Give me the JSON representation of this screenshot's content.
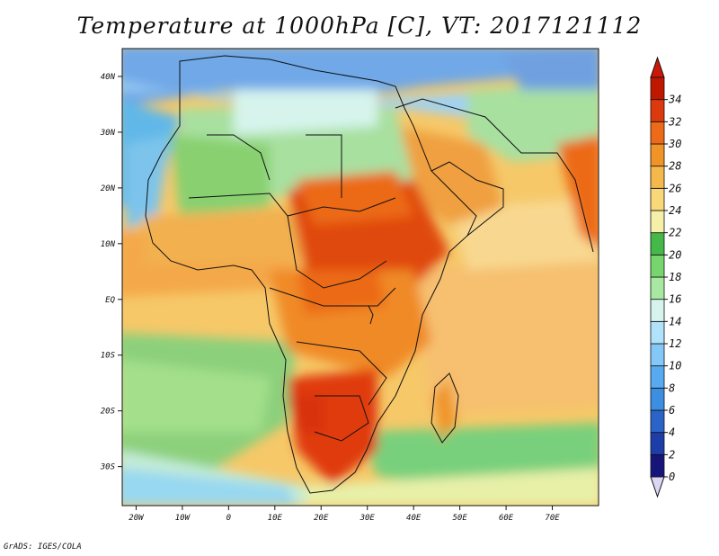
{
  "title": "Temperature at 1000hPa [C], VT: 2017121112",
  "credit": "GrADS: IGES/COLA",
  "map": {
    "lon_range": [
      -23,
      80
    ],
    "lat_range": [
      -37,
      45
    ],
    "y_ticks": [
      {
        "lat": 40,
        "label": "40N"
      },
      {
        "lat": 30,
        "label": "30N"
      },
      {
        "lat": 20,
        "label": "20N"
      },
      {
        "lat": 10,
        "label": "10N"
      },
      {
        "lat": 0,
        "label": "EQ"
      },
      {
        "lat": -10,
        "label": "10S"
      },
      {
        "lat": -20,
        "label": "20S"
      },
      {
        "lat": -30,
        "label": "30S"
      }
    ],
    "x_ticks": [
      {
        "lon": -20,
        "label": "20W"
      },
      {
        "lon": -10,
        "label": "10W"
      },
      {
        "lon": 0,
        "label": "0"
      },
      {
        "lon": 10,
        "label": "10E"
      },
      {
        "lon": 20,
        "label": "20E"
      },
      {
        "lon": 30,
        "label": "30E"
      },
      {
        "lon": 40,
        "label": "40E"
      },
      {
        "lon": 50,
        "label": "50E"
      },
      {
        "lon": 60,
        "label": "60E"
      },
      {
        "lon": 70,
        "label": "70E"
      }
    ]
  },
  "colorbar": {
    "unit": "C",
    "levels": [
      "0",
      "2",
      "4",
      "6",
      "8",
      "10",
      "12",
      "14",
      "16",
      "18",
      "20",
      "22",
      "24",
      "26",
      "28",
      "30",
      "32",
      "34"
    ],
    "colors": [
      "#16167a",
      "#1d3ea8",
      "#2a64c8",
      "#3c8ee0",
      "#58aaf0",
      "#84c8f8",
      "#b0e2fa",
      "#d6f4ec",
      "#a8e8a0",
      "#78d46c",
      "#44b848",
      "#f4f0a8",
      "#f8d878",
      "#f4b84c",
      "#f09428",
      "#ec6a18",
      "#dc3a0c",
      "#c01800"
    ],
    "under_color": "#dcd6f4",
    "over_color": "#cc1808"
  }
}
